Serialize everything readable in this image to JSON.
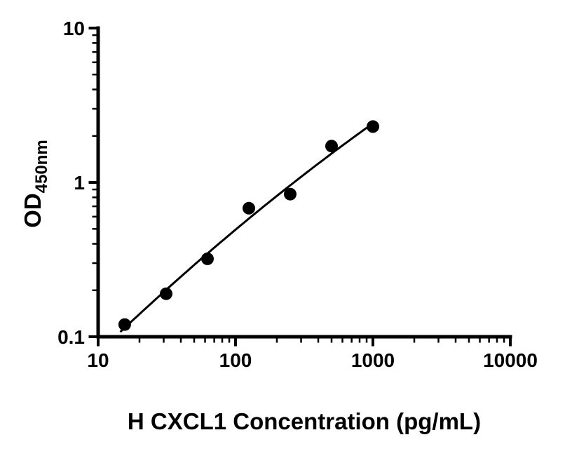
{
  "figure": {
    "background_color": "#ffffff",
    "ink_color": "#000000"
  },
  "chart_data": {
    "type": "scatter",
    "title": "",
    "xlabel": "H CXCL1 Concentration (pg/mL)",
    "ylabel": "OD450nm",
    "ylabel_main": "OD",
    "ylabel_sub": "450nm",
    "x_scale": "log",
    "y_scale": "log",
    "xlim": [
      10,
      10000
    ],
    "ylim": [
      0.1,
      10
    ],
    "x_ticks": [
      10,
      100,
      1000,
      10000
    ],
    "y_ticks": [
      0.1,
      1,
      10
    ],
    "x_tick_labels": [
      "10",
      "100",
      "1000",
      "10000"
    ],
    "y_tick_labels": [
      "0.1",
      "1",
      "10"
    ],
    "grid": false,
    "legend": false,
    "x": [
      15.6,
      31.25,
      62.5,
      125,
      250,
      500,
      1000
    ],
    "y": [
      0.12,
      0.19,
      0.32,
      0.68,
      0.84,
      1.72,
      2.3
    ],
    "marker": "filled-circle",
    "marker_color": "#000000",
    "curve": "smooth-fit-through-points",
    "curve_color": "#000000",
    "curve_range": [
      14.5,
      1000
    ],
    "axis_color": "#000000"
  }
}
